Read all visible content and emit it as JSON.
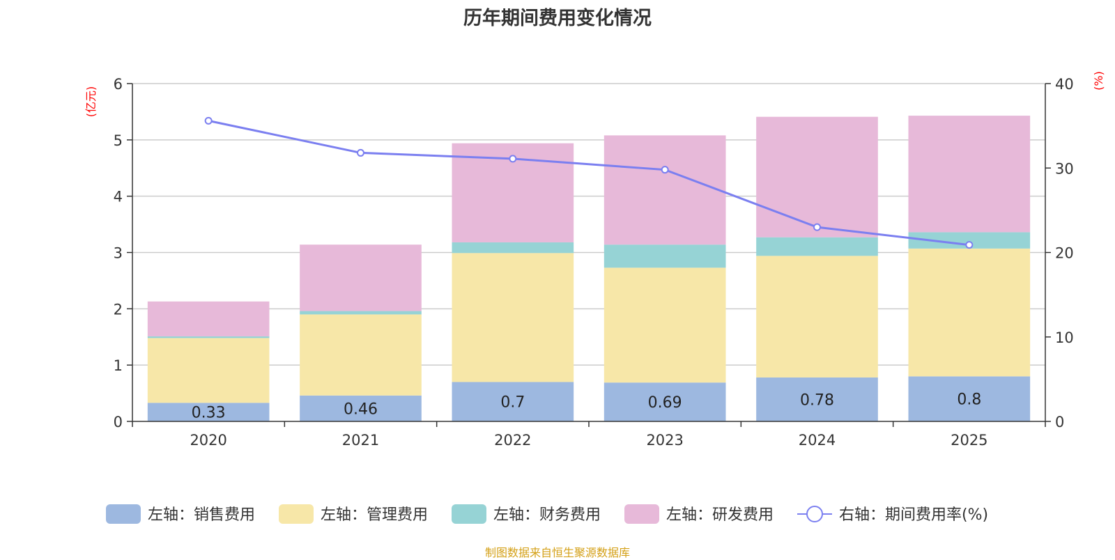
{
  "chart_data": {
    "type": "bar",
    "stacked": true,
    "title": "历年期间费用变化情况",
    "categories": [
      "2020",
      "2021",
      "2022",
      "2023",
      "2024",
      "2025"
    ],
    "left_axis": {
      "unit": "(亿元)",
      "ylim": [
        0,
        6
      ],
      "ticks": [
        "0",
        "1",
        "2",
        "3",
        "4",
        "5",
        "6"
      ]
    },
    "right_axis": {
      "unit": "(%)",
      "ylim": [
        0,
        40
      ],
      "ticks": [
        "0",
        "10",
        "20",
        "30",
        "40"
      ]
    },
    "series": [
      {
        "name": "左轴：销售费用",
        "color": "#9db8e0",
        "axis": "left",
        "values": [
          0.33,
          0.46,
          0.7,
          0.69,
          0.78,
          0.8
        ],
        "labels": [
          "0.33",
          "0.46",
          "0.7",
          "0.69",
          "0.78",
          "0.8"
        ]
      },
      {
        "name": "左轴：管理费用",
        "color": "#f7e7a8",
        "axis": "left",
        "values": [
          1.15,
          1.44,
          2.29,
          2.04,
          2.16,
          2.27
        ]
      },
      {
        "name": "左轴：财务费用",
        "color": "#96d3d5",
        "axis": "left",
        "values": [
          0.03,
          0.06,
          0.19,
          0.41,
          0.33,
          0.29
        ]
      },
      {
        "name": "左轴：研发费用",
        "color": "#e7b9d9",
        "axis": "left",
        "values": [
          0.62,
          1.18,
          1.76,
          1.94,
          2.14,
          2.07
        ]
      }
    ],
    "line_series": {
      "name": "右轴：期间费用率(%)",
      "color": "#7b7ff0",
      "axis": "right",
      "values": [
        35.6,
        31.8,
        31.1,
        29.8,
        23.0,
        20.9
      ]
    },
    "legend_position": "bottom"
  },
  "footer": "制图数据来自恒生聚源数据库"
}
